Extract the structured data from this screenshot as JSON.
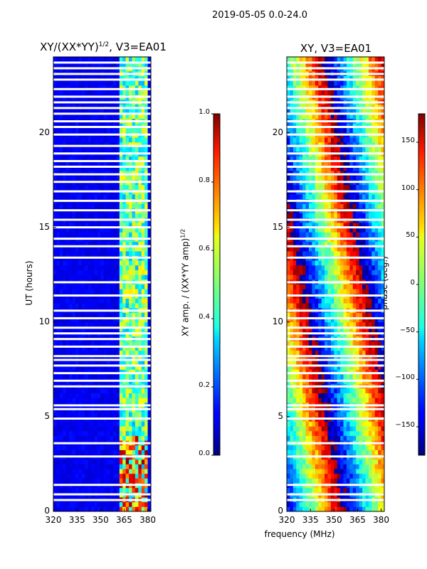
{
  "suptitle": "2019-05-05 0.0-24.0",
  "chart_data": [
    {
      "type": "heatmap",
      "title_main": "XY/(XX*YY)",
      "title_sup": "1/2",
      "title_rest": ", V3=EA01",
      "xlabel": "",
      "ylabel": "UT (hours)",
      "xlim": [
        320,
        382
      ],
      "ylim": [
        0,
        24
      ],
      "xticks": [
        320,
        335,
        350,
        365,
        380
      ],
      "yticks": [
        0,
        5,
        10,
        15,
        20
      ],
      "colorbar": {
        "label_main": "XY amp. / (XX*YY amp)",
        "label_sup": "1/2",
        "range": [
          0.0,
          1.0
        ],
        "ticks": [
          "0.0",
          "0.2",
          "0.4",
          "0.6",
          "0.8",
          "1.0"
        ],
        "tick_values": [
          0.0,
          0.2,
          0.4,
          0.6,
          0.8,
          1.0
        ],
        "colormap": "jet"
      },
      "bright_band_mhz": [
        362,
        380
      ],
      "flagged_hours": [
        0.6,
        0.9,
        1.4,
        2.9,
        3.6,
        4.9,
        5.4,
        5.6,
        6.6,
        6.9,
        7.3,
        7.7,
        8.0,
        8.2,
        8.7,
        9.1,
        9.4,
        9.7,
        10.2,
        10.6,
        11.4,
        12.1,
        13.4,
        14.0,
        14.4,
        15.0,
        15.4,
        15.9,
        16.4,
        16.9,
        17.4,
        17.8,
        18.2,
        18.5,
        18.9,
        19.3,
        19.9,
        20.3,
        20.6,
        21.0,
        21.3,
        21.6,
        21.9,
        22.3,
        22.8,
        23.1,
        23.4,
        23.7
      ]
    },
    {
      "type": "heatmap",
      "title_main": "XY, V3=EA01",
      "xlabel": "frequency (MHz)",
      "ylabel": "",
      "xlim": [
        320,
        382
      ],
      "ylim": [
        0,
        24
      ],
      "xticks": [
        320,
        335,
        350,
        365,
        380
      ],
      "yticks": [
        0,
        5,
        10,
        15,
        20
      ],
      "colorbar": {
        "label_main": "phase (deg.)",
        "range": [
          -180,
          180
        ],
        "ticks": [
          "150",
          "100",
          "50",
          "0",
          "−50",
          "−100",
          "−150"
        ],
        "tick_values": [
          150,
          100,
          50,
          0,
          -50,
          -100,
          -150
        ],
        "colormap": "jet"
      },
      "flagged_hours": [
        0.6,
        0.9,
        1.4,
        2.9,
        3.6,
        4.9,
        5.4,
        5.6,
        6.6,
        6.9,
        7.3,
        7.7,
        8.0,
        8.2,
        8.7,
        9.1,
        9.4,
        9.7,
        10.2,
        10.6,
        11.4,
        12.1,
        13.4,
        14.0,
        14.4,
        15.0,
        15.4,
        15.9,
        16.4,
        16.9,
        17.4,
        17.8,
        18.2,
        18.5,
        18.9,
        19.3,
        19.9,
        20.3,
        20.6,
        21.0,
        21.3,
        21.6,
        21.9,
        22.3,
        22.8,
        23.1,
        23.4,
        23.7
      ]
    }
  ]
}
